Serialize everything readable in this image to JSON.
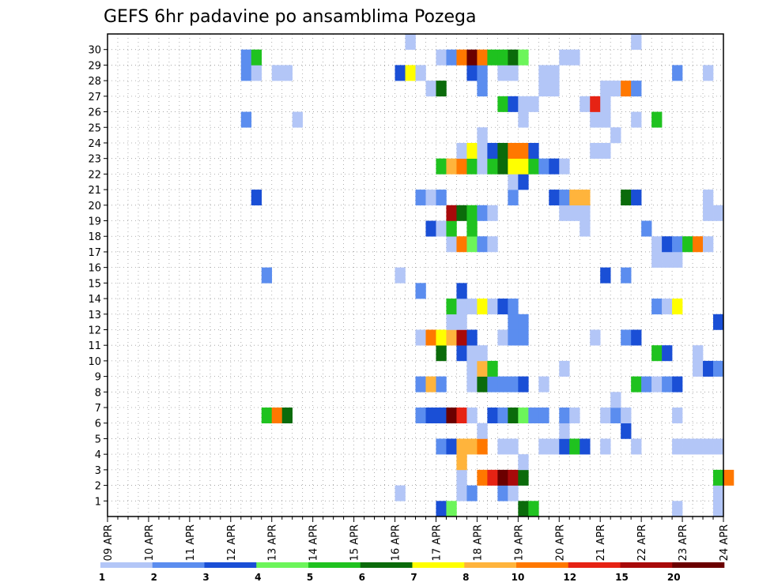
{
  "chart_data": {
    "type": "heatmap",
    "title": "GEFS 6hr padavine po ansamblima Pozega",
    "xlabel": "",
    "ylabel": "",
    "x_ticks": [
      "09 APR",
      "10 APR",
      "11 APR",
      "12 APR",
      "13 APR",
      "14 APR",
      "15 APR",
      "16 APR",
      "17 APR",
      "18 APR",
      "19 APR",
      "20 APR",
      "21 APR",
      "22 APR",
      "23 APR",
      "24 APR"
    ],
    "y_ticks": [
      "1",
      "2",
      "3",
      "4",
      "5",
      "6",
      "7",
      "8",
      "9",
      "10",
      "11",
      "12",
      "13",
      "14",
      "15",
      "16",
      "17",
      "18",
      "19",
      "20",
      "21",
      "22",
      "23",
      "24",
      "25",
      "26",
      "27",
      "28",
      "29",
      "30"
    ],
    "xlim": [
      "09 APR",
      "24 APR"
    ],
    "ylim": [
      0,
      30
    ],
    "step": "6hr",
    "grid": true,
    "legend": {
      "placement": "bottom",
      "labels": [
        "1",
        "2",
        "3",
        "4",
        "5",
        "6",
        "7",
        "8",
        "10",
        "12",
        "15",
        "20"
      ],
      "colors": [
        "#b3c6f7",
        "#5b8def",
        "#1a4fd6",
        "#6cf55a",
        "#1fc21f",
        "#0b6b0b",
        "#ffff00",
        "#ffb43c",
        "#ff7800",
        "#e62314",
        "#a80a0a",
        "#6b0000"
      ]
    },
    "members": [
      {
        "member": 0,
        "cells": [
          [
            "17 APR 00Z",
            3
          ],
          [
            "17 APR 06Z",
            4
          ],
          [
            "19 APR 00Z",
            6
          ],
          [
            "19 APR 06Z",
            5
          ],
          [
            "22 APR 18Z",
            1
          ],
          [
            "23 APR 18Z",
            1
          ]
        ]
      },
      {
        "member": 1,
        "cells": [
          [
            "16 APR 00Z",
            1
          ],
          [
            "17 APR 12Z",
            1
          ],
          [
            "17 APR 18Z",
            2
          ],
          [
            "18 APR 12Z",
            2
          ],
          [
            "18 APR 18Z",
            1
          ],
          [
            "23 APR 18Z",
            1
          ]
        ]
      },
      {
        "member": 2,
        "cells": [
          [
            "17 APR 12Z",
            1
          ],
          [
            "18 APR 00Z",
            11
          ],
          [
            "18 APR 06Z",
            12
          ],
          [
            "18 APR 12Z",
            20
          ],
          [
            "18 APR 18Z",
            15
          ],
          [
            "19 APR 00Z",
            6
          ],
          [
            "23 APR 18Z",
            5
          ],
          [
            "24 APR 00Z",
            10
          ]
        ]
      },
      {
        "member": 3,
        "cells": [
          [
            "17 APR 12Z",
            8
          ],
          [
            "19 APR 00Z",
            1
          ]
        ]
      },
      {
        "member": 4,
        "cells": [
          [
            "17 APR 00Z",
            2
          ],
          [
            "17 APR 06Z",
            3
          ],
          [
            "17 APR 12Z",
            9
          ],
          [
            "17 APR 18Z",
            9
          ],
          [
            "18 APR 00Z",
            10
          ],
          [
            "18 APR 12Z",
            1
          ],
          [
            "18 APR 18Z",
            1
          ],
          [
            "19 APR 12Z",
            1
          ],
          [
            "19 APR 18Z",
            1
          ],
          [
            "20 APR 00Z",
            3
          ],
          [
            "20 APR 06Z",
            5
          ],
          [
            "20 APR 12Z",
            3
          ],
          [
            "21 APR 00Z",
            1
          ],
          [
            "21 APR 18Z",
            1
          ],
          [
            "22 APR 18Z",
            1
          ],
          [
            "23 APR 00Z",
            1
          ],
          [
            "23 APR 06Z",
            1
          ],
          [
            "23 APR 12Z",
            1
          ],
          [
            "23 APR 18Z",
            1
          ]
        ]
      },
      {
        "member": 5,
        "cells": [
          [
            "18 APR 00Z",
            1
          ],
          [
            "20 APR 00Z",
            1
          ],
          [
            "21 APR 12Z",
            3
          ]
        ]
      },
      {
        "member": 6,
        "cells": [
          [
            "12 APR 18Z",
            5
          ],
          [
            "13 APR 00Z",
            10
          ],
          [
            "13 APR 06Z",
            6
          ],
          [
            "16 APR 12Z",
            2
          ],
          [
            "16 APR 18Z",
            3
          ],
          [
            "17 APR 00Z",
            3
          ],
          [
            "17 APR 06Z",
            20
          ],
          [
            "17 APR 12Z",
            12
          ],
          [
            "17 APR 18Z",
            1
          ],
          [
            "18 APR 06Z",
            3
          ],
          [
            "18 APR 12Z",
            2
          ],
          [
            "18 APR 18Z",
            6
          ],
          [
            "19 APR 00Z",
            4
          ],
          [
            "19 APR 06Z",
            2
          ],
          [
            "19 APR 12Z",
            2
          ],
          [
            "20 APR 00Z",
            2
          ],
          [
            "20 APR 06Z",
            1
          ],
          [
            "21 APR 00Z",
            1
          ],
          [
            "21 APR 06Z",
            2
          ],
          [
            "21 APR 12Z",
            1
          ],
          [
            "22 APR 18Z",
            1
          ]
        ]
      },
      {
        "member": 7,
        "cells": [
          [
            "21 APR 06Z",
            1
          ]
        ]
      },
      {
        "member": 8,
        "cells": [
          [
            "16 APR 12Z",
            2
          ],
          [
            "16 APR 18Z",
            8
          ],
          [
            "17 APR 00Z",
            2
          ],
          [
            "17 APR 18Z",
            1
          ],
          [
            "18 APR 00Z",
            6
          ],
          [
            "18 APR 06Z",
            2
          ],
          [
            "18 APR 12Z",
            2
          ],
          [
            "18 APR 18Z",
            2
          ],
          [
            "19 APR 00Z",
            3
          ],
          [
            "19 APR 12Z",
            1
          ],
          [
            "21 APR 18Z",
            5
          ],
          [
            "22 APR 00Z",
            2
          ],
          [
            "22 APR 06Z",
            1
          ],
          [
            "22 APR 12Z",
            2
          ],
          [
            "22 APR 18Z",
            3
          ]
        ]
      },
      {
        "member": 9,
        "cells": [
          [
            "17 APR 18Z",
            1
          ],
          [
            "18 APR 00Z",
            8
          ],
          [
            "18 APR 06Z",
            5
          ],
          [
            "20 APR 00Z",
            1
          ],
          [
            "23 APR 06Z",
            1
          ],
          [
            "23 APR 12Z",
            3
          ],
          [
            "23 APR 18Z",
            2
          ]
        ]
      },
      {
        "member": 10,
        "cells": [
          [
            "17 APR 00Z",
            6
          ],
          [
            "17 APR 12Z",
            3
          ],
          [
            "17 APR 18Z",
            1
          ],
          [
            "18 APR 00Z",
            1
          ],
          [
            "22 APR 06Z",
            5
          ],
          [
            "22 APR 12Z",
            3
          ],
          [
            "23 APR 06Z",
            1
          ]
        ]
      },
      {
        "member": 11,
        "cells": [
          [
            "16 APR 12Z",
            1
          ],
          [
            "16 APR 18Z",
            10
          ],
          [
            "17 APR 00Z",
            7
          ],
          [
            "17 APR 06Z",
            9
          ],
          [
            "17 APR 12Z",
            15
          ],
          [
            "17 APR 18Z",
            3
          ],
          [
            "18 APR 12Z",
            1
          ],
          [
            "18 APR 18Z",
            2
          ],
          [
            "19 APR 00Z",
            2
          ],
          [
            "20 APR 18Z",
            1
          ],
          [
            "21 APR 12Z",
            2
          ],
          [
            "21 APR 18Z",
            3
          ]
        ]
      },
      {
        "member": 12,
        "cells": [
          [
            "17 APR 06Z",
            1
          ],
          [
            "17 APR 12Z",
            1
          ],
          [
            "18 APR 18Z",
            2
          ],
          [
            "19 APR 00Z",
            2
          ],
          [
            "23 APR 18Z",
            3
          ]
        ]
      },
      {
        "member": 13,
        "cells": [
          [
            "17 APR 06Z",
            5
          ],
          [
            "17 APR 12Z",
            1
          ],
          [
            "17 APR 18Z",
            1
          ],
          [
            "18 APR 00Z",
            7
          ],
          [
            "18 APR 06Z",
            1
          ],
          [
            "18 APR 12Z",
            3
          ],
          [
            "18 APR 18Z",
            2
          ],
          [
            "22 APR 06Z",
            2
          ],
          [
            "22 APR 12Z",
            1
          ],
          [
            "22 APR 18Z",
            7
          ]
        ]
      },
      {
        "member": 14,
        "cells": [
          [
            "16 APR 12Z",
            2
          ],
          [
            "17 APR 12Z",
            3
          ]
        ]
      },
      {
        "member": 15,
        "cells": [
          [
            "12 APR 18Z",
            2
          ],
          [
            "16 APR 00Z",
            1
          ],
          [
            "21 APR 00Z",
            3
          ],
          [
            "21 APR 12Z",
            2
          ]
        ]
      },
      {
        "member": 16,
        "cells": [
          [
            "22 APR 06Z",
            1
          ],
          [
            "22 APR 12Z",
            1
          ],
          [
            "22 APR 18Z",
            1
          ]
        ]
      },
      {
        "member": 17,
        "cells": [
          [
            "17 APR 06Z",
            1
          ],
          [
            "17 APR 12Z",
            10
          ],
          [
            "17 APR 18Z",
            4
          ],
          [
            "18 APR 00Z",
            2
          ],
          [
            "18 APR 06Z",
            1
          ],
          [
            "22 APR 06Z",
            1
          ],
          [
            "22 APR 12Z",
            3
          ],
          [
            "22 APR 18Z",
            2
          ],
          [
            "23 APR 00Z",
            5
          ],
          [
            "23 APR 06Z",
            10
          ],
          [
            "23 APR 12Z",
            1
          ]
        ]
      },
      {
        "member": 18,
        "cells": [
          [
            "16 APR 18Z",
            3
          ],
          [
            "17 APR 00Z",
            1
          ],
          [
            "17 APR 06Z",
            5
          ],
          [
            "17 APR 18Z",
            5
          ],
          [
            "20 APR 12Z",
            1
          ],
          [
            "22 APR 00Z",
            2
          ]
        ]
      },
      {
        "member": 19,
        "cells": [
          [
            "17 APR 06Z",
            15
          ],
          [
            "17 APR 12Z",
            6
          ],
          [
            "17 APR 18Z",
            5
          ],
          [
            "18 APR 00Z",
            2
          ],
          [
            "18 APR 06Z",
            1
          ],
          [
            "20 APR 00Z",
            1
          ],
          [
            "20 APR 06Z",
            1
          ],
          [
            "20 APR 12Z",
            1
          ],
          [
            "23 APR 12Z",
            1
          ],
          [
            "23 APR 18Z",
            1
          ]
        ]
      },
      {
        "member": 20,
        "cells": [
          [
            "12 APR 12Z",
            3
          ],
          [
            "16 APR 12Z",
            2
          ],
          [
            "16 APR 18Z",
            1
          ],
          [
            "17 APR 00Z",
            2
          ],
          [
            "18 APR 18Z",
            2
          ],
          [
            "19 APR 18Z",
            3
          ],
          [
            "20 APR 00Z",
            2
          ],
          [
            "20 APR 06Z",
            8
          ],
          [
            "20 APR 12Z",
            8
          ],
          [
            "21 APR 12Z",
            6
          ],
          [
            "21 APR 18Z",
            3
          ],
          [
            "23 APR 12Z",
            1
          ]
        ]
      },
      {
        "member": 21,
        "cells": [
          [
            "18 APR 18Z",
            1
          ],
          [
            "19 APR 00Z",
            3
          ]
        ]
      },
      {
        "member": 22,
        "cells": [
          [
            "17 APR 00Z",
            5
          ],
          [
            "17 APR 06Z",
            8
          ],
          [
            "17 APR 12Z",
            10
          ],
          [
            "17 APR 18Z",
            5
          ],
          [
            "18 APR 00Z",
            1
          ],
          [
            "18 APR 06Z",
            5
          ],
          [
            "18 APR 12Z",
            6
          ],
          [
            "18 APR 18Z",
            7
          ],
          [
            "19 APR 00Z",
            7
          ],
          [
            "19 APR 06Z",
            5
          ],
          [
            "19 APR 12Z",
            2
          ],
          [
            "19 APR 18Z",
            3
          ],
          [
            "20 APR 00Z",
            1
          ]
        ]
      },
      {
        "member": 23,
        "cells": [
          [
            "17 APR 12Z",
            1
          ],
          [
            "17 APR 18Z",
            7
          ],
          [
            "18 APR 00Z",
            1
          ],
          [
            "18 APR 06Z",
            3
          ],
          [
            "18 APR 12Z",
            6
          ],
          [
            "18 APR 18Z",
            10
          ],
          [
            "19 APR 00Z",
            10
          ],
          [
            "19 APR 06Z",
            3
          ],
          [
            "20 APR 18Z",
            1
          ],
          [
            "21 APR 00Z",
            1
          ]
        ]
      },
      {
        "member": 24,
        "cells": [
          [
            "18 APR 00Z",
            1
          ],
          [
            "21 APR 06Z",
            1
          ]
        ]
      },
      {
        "member": 25,
        "cells": [
          [
            "12 APR 06Z",
            2
          ],
          [
            "13 APR 12Z",
            1
          ],
          [
            "19 APR 00Z",
            1
          ],
          [
            "20 APR 18Z",
            1
          ],
          [
            "21 APR 00Z",
            1
          ],
          [
            "21 APR 18Z",
            1
          ],
          [
            "22 APR 06Z",
            5
          ]
        ]
      },
      {
        "member": 26,
        "cells": [
          [
            "18 APR 12Z",
            5
          ],
          [
            "18 APR 18Z",
            3
          ],
          [
            "19 APR 00Z",
            1
          ],
          [
            "19 APR 06Z",
            1
          ],
          [
            "20 APR 12Z",
            1
          ],
          [
            "20 APR 18Z",
            12
          ],
          [
            "21 APR 00Z",
            1
          ]
        ]
      },
      {
        "member": 27,
        "cells": [
          [
            "16 APR 18Z",
            1
          ],
          [
            "17 APR 00Z",
            6
          ],
          [
            "18 APR 00Z",
            2
          ],
          [
            "19 APR 12Z",
            1
          ],
          [
            "19 APR 18Z",
            1
          ],
          [
            "21 APR 00Z",
            1
          ],
          [
            "21 APR 06Z",
            1
          ],
          [
            "21 APR 12Z",
            10
          ],
          [
            "21 APR 18Z",
            2
          ]
        ]
      },
      {
        "member": 28,
        "cells": [
          [
            "12 APR 06Z",
            2
          ],
          [
            "12 APR 12Z",
            1
          ],
          [
            "13 APR 00Z",
            1
          ],
          [
            "13 APR 06Z",
            1
          ],
          [
            "16 APR 00Z",
            3
          ],
          [
            "16 APR 06Z",
            7
          ],
          [
            "16 APR 12Z",
            1
          ],
          [
            "17 APR 18Z",
            3
          ],
          [
            "18 APR 00Z",
            2
          ],
          [
            "18 APR 12Z",
            1
          ],
          [
            "18 APR 18Z",
            1
          ],
          [
            "19 APR 12Z",
            1
          ],
          [
            "19 APR 18Z",
            1
          ],
          [
            "22 APR 18Z",
            2
          ],
          [
            "23 APR 12Z",
            1
          ]
        ]
      },
      {
        "member": 29,
        "cells": [
          [
            "12 APR 06Z",
            2
          ],
          [
            "12 APR 12Z",
            5
          ],
          [
            "17 APR 00Z",
            1
          ],
          [
            "17 APR 06Z",
            2
          ],
          [
            "17 APR 12Z",
            10
          ],
          [
            "17 APR 18Z",
            20
          ],
          [
            "18 APR 00Z",
            10
          ],
          [
            "18 APR 06Z",
            5
          ],
          [
            "18 APR 12Z",
            5
          ],
          [
            "18 APR 18Z",
            6
          ],
          [
            "19 APR 00Z",
            4
          ],
          [
            "20 APR 00Z",
            1
          ],
          [
            "20 APR 06Z",
            1
          ]
        ]
      },
      {
        "member": 30,
        "cells": [
          [
            "16 APR 06Z",
            1
          ],
          [
            "21 APR 18Z",
            1
          ]
        ]
      }
    ]
  }
}
